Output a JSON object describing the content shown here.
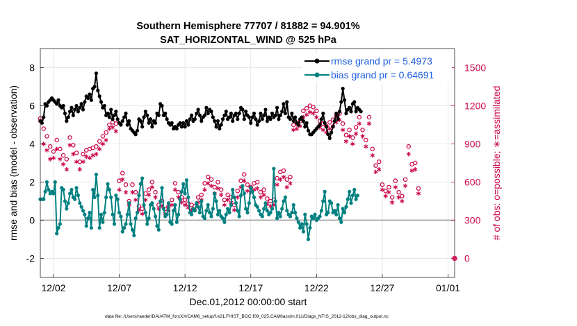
{
  "chart_data": {
    "type": "line",
    "title_line1": "Southern Hemisphere 77707 / 81882 = 94.901%",
    "title_line2": "SAT_HORIZONTAL_WIND @ 525 hPa",
    "xlabel": "Dec.01,2012 00:00:00 start",
    "ylabel_left": "rmse and bias (model - observation)",
    "ylabel_right": "# of obs: o=possible; ∗=assimilated",
    "x_range": [
      0,
      31.5
    ],
    "ylim_left": [
      -3,
      9
    ],
    "ylim_right": [
      -150,
      1650
    ],
    "y_ticks_left": [
      -2,
      0,
      2,
      4,
      6,
      8
    ],
    "y_ticks_right": [
      0,
      300,
      600,
      900,
      1200,
      1500
    ],
    "x_ticks": [
      {
        "x": 1,
        "label": "12/02"
      },
      {
        "x": 6,
        "label": "12/07"
      },
      {
        "x": 11,
        "label": "12/12"
      },
      {
        "x": 16,
        "label": "12/17"
      },
      {
        "x": 21,
        "label": "12/22"
      },
      {
        "x": 26,
        "label": "12/27"
      },
      {
        "x": 31,
        "label": "01/01"
      }
    ],
    "grid": true,
    "legend_position": "top-right",
    "colors": {
      "rmse": "#000000",
      "bias": "#008080",
      "obs": "#cc0b4f",
      "zero_line": "#b0b0b0",
      "legend_text": "#1f5fe0",
      "grid": "#e6e6e6"
    },
    "series": [
      {
        "name": "rmse grand pr = 5.4973",
        "axis": "left",
        "x_start": 0.0,
        "x_step": 0.125,
        "values": [
          5.2,
          5.1,
          5.4,
          6.1,
          6.0,
          6.2,
          6.3,
          6.4,
          6.3,
          6.2,
          6.1,
          6.3,
          6.0,
          5.9,
          6.0,
          5.6,
          5.2,
          5.4,
          5.7,
          5.9,
          5.5,
          5.8,
          6.0,
          5.7,
          5.9,
          6.1,
          5.8,
          6.2,
          6.5,
          6.4,
          6.6,
          6.3,
          6.9,
          7.0,
          7.7,
          6.8,
          6.5,
          6.2,
          5.9,
          6.0,
          5.5,
          5.6,
          5.4,
          5.8,
          5.3,
          5.5,
          5.7,
          5.3,
          5.1,
          5.0,
          5.2,
          5.4,
          5.6,
          5.0,
          5.2,
          4.8,
          4.7,
          4.6,
          4.5,
          4.7,
          5.3,
          5.2,
          4.9,
          5.4,
          5.7,
          5.5,
          5.1,
          5.3,
          4.9,
          5.2,
          5.1,
          5.6,
          5.5,
          6.1,
          6.0,
          5.5,
          5.6,
          5.3,
          5.1,
          5.0,
          5.1,
          4.8,
          4.9,
          4.8,
          5.0,
          5.1,
          4.9,
          5.1,
          4.9,
          5.2,
          5.0,
          5.3,
          5.5,
          5.2,
          5.3,
          5.6,
          5.8,
          5.5,
          5.2,
          5.4,
          5.5,
          5.9,
          5.6,
          5.8,
          5.7,
          5.4,
          5.2,
          4.9,
          5.2,
          4.8,
          5.0,
          5.3,
          5.5,
          5.7,
          5.3,
          5.4,
          5.6,
          5.2,
          5.5,
          5.6,
          5.3,
          5.6,
          5.9,
          5.8,
          5.3,
          5.7,
          5.5,
          5.4,
          5.1,
          5.4,
          5.6,
          5.3,
          5.0,
          5.2,
          5.6,
          5.3,
          5.5,
          5.8,
          5.2,
          5.4,
          5.3,
          5.6,
          5.4,
          5.5,
          5.9,
          5.3,
          5.5,
          5.7,
          6.1,
          5.6,
          6.2,
          5.4,
          5.3,
          5.6,
          5.2,
          5.4,
          5.1,
          5.0,
          5.3,
          5.4,
          5.2,
          4.9,
          5.1,
          4.7,
          4.5,
          4.5,
          4.6,
          4.7,
          4.8,
          4.9,
          5.0,
          5.3,
          5.6,
          5.1,
          4.9,
          4.5,
          4.3,
          4.6,
          4.9,
          5.2,
          5.6,
          5.3,
          5.7,
          6.2,
          6.9,
          6.3,
          5.6,
          5.8,
          5.9,
          5.7,
          6.1,
          6.2,
          5.7,
          5.9,
          5.8,
          5.7
        ]
      },
      {
        "name": "bias grand pr = 0.64691",
        "axis": "left",
        "x_start": 0.0,
        "x_step": 0.125,
        "values": [
          1.1,
          1.1,
          1.1,
          1.5,
          2.0,
          1.6,
          1.4,
          1.5,
          1.4,
          2.0,
          -0.7,
          -0.4,
          -0.2,
          1.7,
          1.6,
          1.0,
          0.6,
          0.9,
          1.4,
          1.6,
          1.2,
          1.1,
          1.7,
          1.3,
          0.9,
          0.7,
          0.5,
          0.3,
          -0.3,
          0.1,
          0.4,
          -0.4,
          1.6,
          1.2,
          2.4,
          1.3,
          -0.4,
          0.3,
          -0.1,
          0.4,
          1.2,
          1.9,
          1.6,
          1.2,
          0.3,
          -0.2,
          1.3,
          1.1,
          0.4,
          0.2,
          -0.6,
          -0.4,
          -0.2,
          0.3,
          0.9,
          -0.2,
          -0.5,
          -0.8,
          0.1,
          0.4,
          1.3,
          1.9,
          2.2,
          0.8,
          0.4,
          -0.2,
          0.1,
          0.8,
          0.9,
          0.6,
          0.2,
          -0.3,
          -0.5,
          1.0,
          1.7,
          0.6,
          0.2,
          0.3,
          0.9,
          -0.1,
          -0.2,
          0.5,
          0.8,
          -0.1,
          0.3,
          1.1,
          1.5,
          1.9,
          1.4,
          2.1,
          1.2,
          0.4,
          0.3,
          0.6,
          0.5,
          0.9,
          0.7,
          0.4,
          1.0,
          0.2,
          0.1,
          0.5,
          0.8,
          0.4,
          0.2,
          0.6,
          1.4,
          1.0,
          0.3,
          0.5,
          0.2,
          0.1,
          -0.1,
          0.3,
          0.6,
          0.4,
          0.8,
          1.6,
          1.2,
          0.9,
          0.5,
          0.2,
          1.3,
          1.8,
          1.4,
          0.6,
          0.4,
          0.9,
          1.7,
          1.5,
          1.2,
          0.8,
          0.7,
          0.5,
          0.3,
          0.2,
          0.6,
          0.9,
          0.5,
          0.3,
          0.4,
          0.6,
          2.7,
          1.0,
          0.1,
          0.4,
          0.2,
          0.6,
          1.0,
          1.2,
          0.5,
          0.3,
          0.2,
          0.4,
          0.8,
          0.4,
          0.1,
          -0.1,
          -0.4,
          -0.2,
          -0.6,
          0.3,
          -0.2,
          -1.0,
          -0.4,
          0.2,
          0.1,
          0.3,
          0.0,
          0.1,
          0.2,
          0.5,
          1.0,
          1.5,
          0.3,
          0.4,
          1.0,
          0.9,
          0.4,
          0.5,
          0.3,
          0.8,
          0.1,
          -0.1,
          0.6,
          0.4,
          0.7,
          1.1,
          1.5,
          0.9,
          1.3,
          1.6,
          1.1,
          1.3
        ]
      },
      {
        "name": "obs possible (o)",
        "axis": "right",
        "marker": "circle",
        "x_start": 0.0,
        "x_step": 0.25,
        "values": [
          1100,
          1020,
          960,
          880,
          840,
          930,
          860,
          810,
          780,
          950,
          890,
          830,
          760,
          820,
          850,
          860,
          870,
          880,
          920,
          960,
          990,
          1050,
          1070,
          1060,
          610,
          670,
          580,
          450,
          580,
          520,
          410,
          390,
          510,
          540,
          600,
          520,
          420,
          450,
          390,
          410,
          460,
          590,
          520,
          480,
          460,
          430,
          420,
          410,
          480,
          500,
          590,
          640,
          620,
          560,
          600,
          540,
          460,
          500,
          480,
          420,
          530,
          610,
          660,
          580,
          560,
          590,
          600,
          520,
          540,
          470,
          450,
          460,
          630,
          680,
          690,
          620,
          640,
          1050,
          1060,
          1080,
          1160,
          1180,
          1200,
          1190,
          1160,
          1080,
          1060,
          1040,
          1070,
          1090,
          1120,
          1140,
          1060,
          970,
          1010,
          950,
          1030,
          1110,
          1010,
          930,
          1110,
          860,
          730,
          760,
          580,
          530,
          560,
          480,
          610,
          520,
          490,
          620,
          880,
          740,
          750,
          550
        ]
      },
      {
        "name": "obs assimilated (∗)",
        "axis": "right",
        "marker": "asterisk",
        "x_start": 0.0,
        "x_step": 0.25,
        "values": [
          1080,
          900,
          850,
          780,
          790,
          860,
          780,
          740,
          700,
          890,
          820,
          760,
          700,
          760,
          800,
          790,
          810,
          820,
          860,
          900,
          930,
          1020,
          1030,
          1000,
          540,
          620,
          520,
          420,
          520,
          460,
          380,
          350,
          460,
          500,
          560,
          480,
          390,
          410,
          350,
          380,
          420,
          540,
          480,
          440,
          420,
          400,
          380,
          380,
          440,
          460,
          540,
          590,
          570,
          510,
          550,
          500,
          420,
          460,
          440,
          380,
          480,
          560,
          610,
          530,
          520,
          540,
          550,
          480,
          500,
          430,
          410,
          420,
          580,
          620,
          640,
          560,
          590,
          1010,
          1020,
          1040,
          1110,
          1130,
          1150,
          1140,
          1110,
          1030,
          1010,
          990,
          1020,
          1040,
          1070,
          1090,
          1010,
          920,
          960,
          900,
          980,
          1060,
          960,
          880,
          1060,
          810,
          680,
          700,
          540,
          490,
          520,
          440,
          560,
          480,
          450,
          570,
          820,
          690,
          700,
          510
        ]
      }
    ]
  },
  "legend": {
    "rmse_label": "rmse grand pr = 5.4973",
    "bias_label": "bias grand pr = 0.64691"
  },
  "extra_point": {
    "label": "0",
    "value": 0
  },
  "footer": "data file: /Users/raeder/DAI/ATM_forcXX/CAM6_setup/f.e21.FHIST_BGC.f09_025.CAM6assim.011/Diags_NTrS_2012-12/obs_diag_output.nc"
}
